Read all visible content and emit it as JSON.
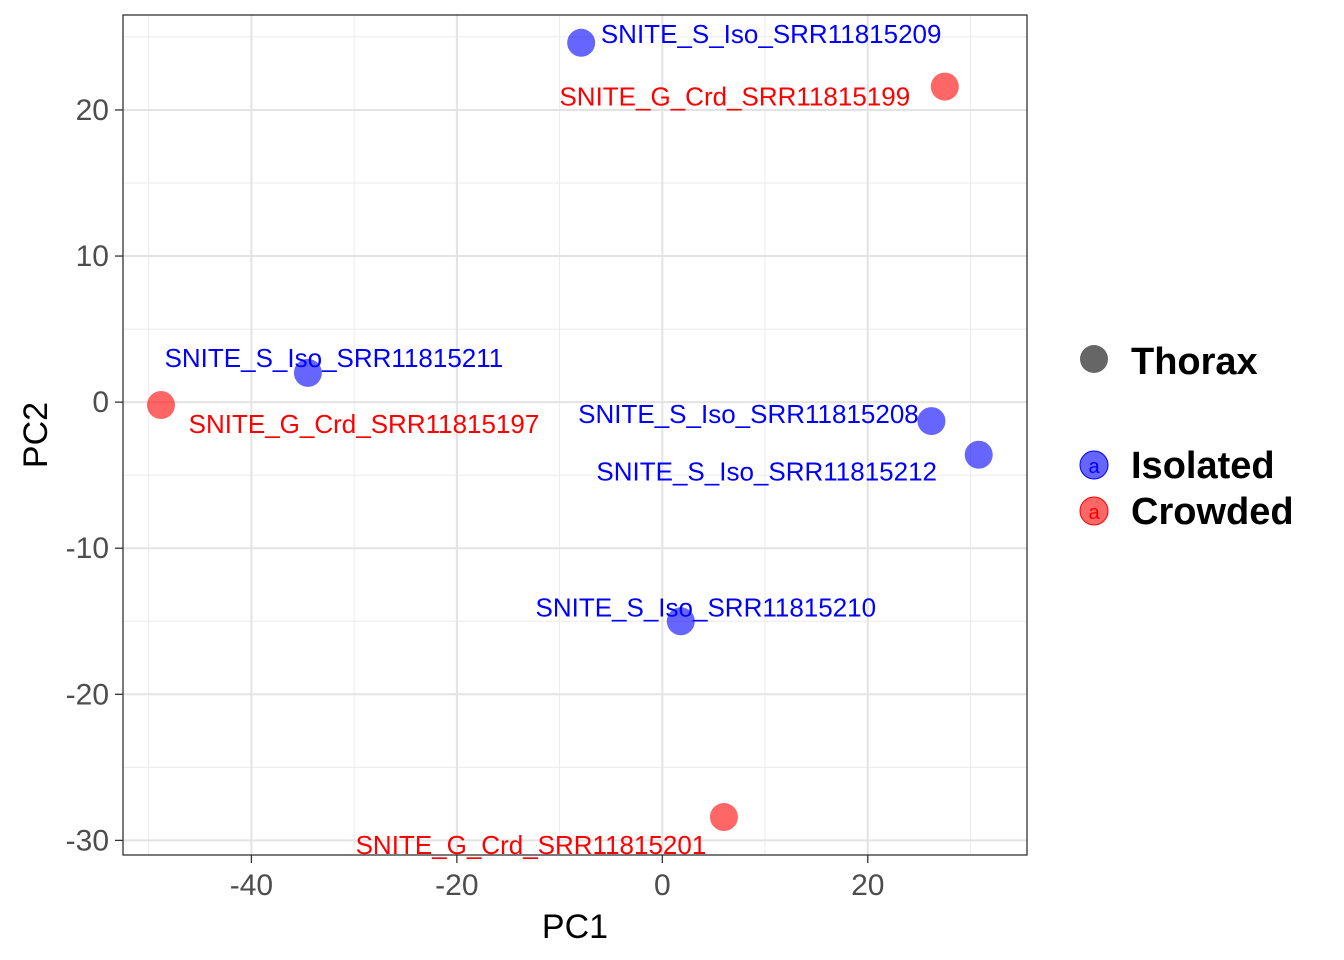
{
  "chart_data": {
    "type": "scatter",
    "xlabel": "PC1",
    "ylabel": "PC2",
    "xlim": [
      -52.5,
      35.5
    ],
    "ylim": [
      -31,
      26.5
    ],
    "x_ticks": [
      -40,
      -20,
      0,
      20
    ],
    "x_tick_labels": [
      "-40",
      "-20",
      "0",
      "20"
    ],
    "y_ticks": [
      -30,
      -20,
      -10,
      0,
      10,
      20
    ],
    "y_tick_labels": [
      "-30",
      "-20",
      "-10",
      "0",
      "10",
      "20"
    ],
    "grid": true,
    "legend": {
      "placement": "right",
      "shape_title": "Thorax",
      "entries": [
        {
          "name": "Isolated",
          "color": "#0000ff",
          "key_glyph": "a"
        },
        {
          "name": "Crowded",
          "color": "#ff0000",
          "key_glyph": "a"
        }
      ]
    },
    "colors": {
      "Isolated": "#0000ff",
      "Crowded": "#ff0000"
    },
    "points": [
      {
        "label": "SNITE_S_Iso_SRR11815209",
        "group": "Isolated",
        "x": -7.9,
        "y": 24.6
      },
      {
        "label": "SNITE_G_Crd_SRR11815199",
        "group": "Crowded",
        "x": 27.5,
        "y": 21.6
      },
      {
        "label": "SNITE_S_Iso_SRR11815211",
        "group": "Isolated",
        "x": -34.5,
        "y": 2.0
      },
      {
        "label": "SNITE_G_Crd_SRR11815197",
        "group": "Crowded",
        "x": -48.8,
        "y": -0.2
      },
      {
        "label": "SNITE_S_Iso_SRR11815208",
        "group": "Isolated",
        "x": 26.2,
        "y": -1.3
      },
      {
        "label": "SNITE_S_Iso_SRR11815212",
        "group": "Isolated",
        "x": 30.8,
        "y": -3.6
      },
      {
        "label": "SNITE_S_Iso_SRR11815210",
        "group": "Isolated",
        "x": 1.8,
        "y": -15.0
      },
      {
        "label": "SNITE_G_Crd_SRR11815201",
        "group": "Crowded",
        "x": 6.0,
        "y": -28.4
      }
    ]
  }
}
